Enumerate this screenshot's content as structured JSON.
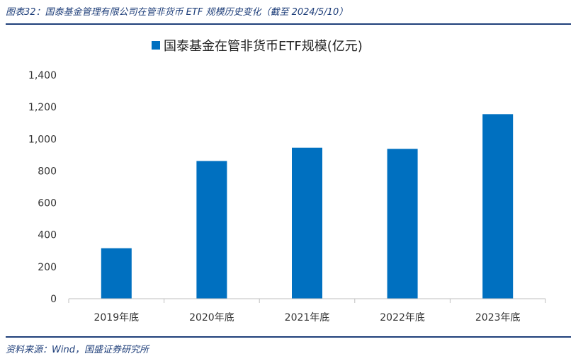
{
  "header": {
    "caption": "图表32：国泰基金管理有限公司在管非货币 ETF 规模历史变化（截至 2024/5/10）"
  },
  "footer": {
    "source": "资料来源：Wind，国盛证券研究所"
  },
  "colors": {
    "bar": "#0070c0",
    "rule": "#1f3f7a",
    "axis": "#bfbfbf"
  },
  "chart_data": {
    "type": "bar",
    "categories": [
      "2019年底",
      "2020年底",
      "2021年底",
      "2022年底",
      "2023年底"
    ],
    "series": [
      {
        "name": "国泰基金在管非货币ETF规模(亿元)",
        "values": [
          316,
          862,
          945,
          938,
          1155
        ]
      }
    ],
    "ylim": [
      0,
      1400
    ],
    "yticks": [
      0,
      200,
      400,
      600,
      800,
      1000,
      1200,
      1400
    ],
    "ytick_labels": [
      "0",
      "200",
      "400",
      "600",
      "800",
      "1,000",
      "1,200",
      "1,400"
    ],
    "legend": "top",
    "grid": false
  }
}
